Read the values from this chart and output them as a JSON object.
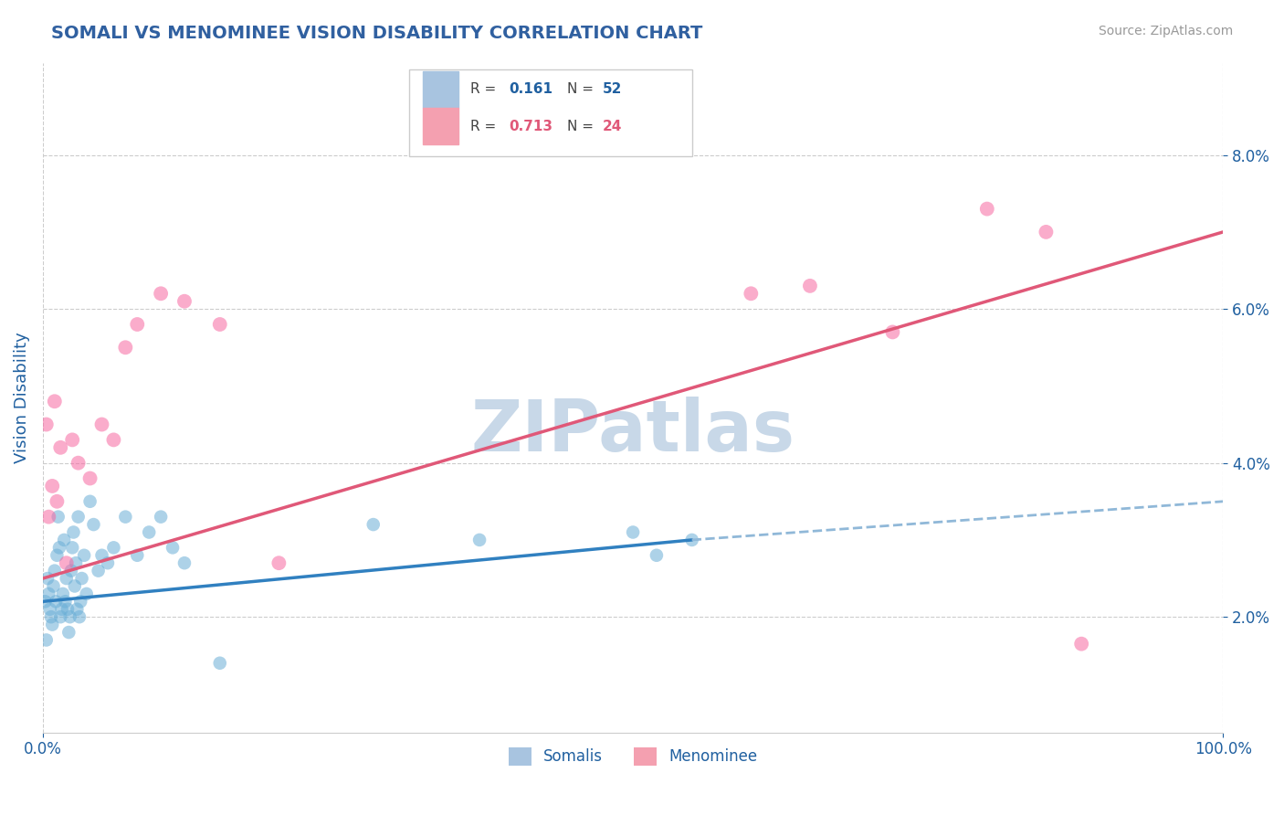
{
  "title": "SOMALI VS MENOMINEE VISION DISABILITY CORRELATION CHART",
  "source": "Source: ZipAtlas.com",
  "ylabel": "Vision Disability",
  "xlim": [
    0,
    100
  ],
  "ylim": [
    0.5,
    9.2
  ],
  "yticks": [
    2.0,
    4.0,
    6.0,
    8.0
  ],
  "xticks": [
    0,
    100
  ],
  "xtick_labels": [
    "0.0%",
    "100.0%"
  ],
  "somali_color": "#6aaed6",
  "menominee_color": "#f768a1",
  "somali_alpha": 0.55,
  "menominee_alpha": 0.55,
  "somali_x": [
    0.2,
    0.3,
    0.4,
    0.5,
    0.6,
    0.7,
    0.8,
    0.9,
    1.0,
    1.1,
    1.2,
    1.3,
    1.4,
    1.5,
    1.6,
    1.7,
    1.8,
    1.9,
    2.0,
    2.1,
    2.2,
    2.3,
    2.4,
    2.5,
    2.6,
    2.7,
    2.8,
    2.9,
    3.0,
    3.1,
    3.2,
    3.3,
    3.5,
    3.7,
    4.0,
    4.3,
    4.7,
    5.0,
    5.5,
    6.0,
    7.0,
    8.0,
    9.0,
    10.0,
    11.0,
    12.0,
    15.0,
    28.0,
    37.0,
    50.0,
    52.0,
    55.0
  ],
  "somali_y": [
    2.2,
    1.7,
    2.5,
    2.3,
    2.1,
    2.0,
    1.9,
    2.4,
    2.6,
    2.2,
    2.8,
    3.3,
    2.9,
    2.0,
    2.1,
    2.3,
    3.0,
    2.2,
    2.5,
    2.1,
    1.8,
    2.0,
    2.6,
    2.9,
    3.1,
    2.4,
    2.7,
    2.1,
    3.3,
    2.0,
    2.2,
    2.5,
    2.8,
    2.3,
    3.5,
    3.2,
    2.6,
    2.8,
    2.7,
    2.9,
    3.3,
    2.8,
    3.1,
    3.3,
    2.9,
    2.7,
    1.4,
    3.2,
    3.0,
    3.1,
    2.8,
    3.0
  ],
  "menominee_x": [
    0.3,
    0.5,
    0.8,
    1.0,
    1.2,
    1.5,
    2.0,
    2.5,
    3.0,
    4.0,
    5.0,
    6.0,
    7.0,
    8.0,
    10.0,
    12.0,
    15.0,
    20.0,
    60.0,
    65.0,
    72.0,
    80.0,
    85.0,
    88.0
  ],
  "menominee_y": [
    4.5,
    3.3,
    3.7,
    4.8,
    3.5,
    4.2,
    2.7,
    4.3,
    4.0,
    3.8,
    4.5,
    4.3,
    5.5,
    5.8,
    6.2,
    6.1,
    5.8,
    2.7,
    6.2,
    6.3,
    5.7,
    7.3,
    7.0,
    1.65
  ],
  "somali_R": 0.161,
  "somali_N": 52,
  "menominee_R": 0.713,
  "menominee_N": 24,
  "watermark": "ZIPatlas",
  "watermark_color": "#c8d8e8",
  "background_color": "#ffffff",
  "grid_color": "#cccccc",
  "title_color": "#3060a0",
  "source_color": "#999999",
  "axis_label_color": "#2060a0",
  "somali_line_color": "#3080c0",
  "somali_dash_color": "#90b8d8",
  "menominee_line_color": "#e05878",
  "legend_patch_somali": "#a8c4e0",
  "legend_patch_menominee": "#f4a0b0"
}
